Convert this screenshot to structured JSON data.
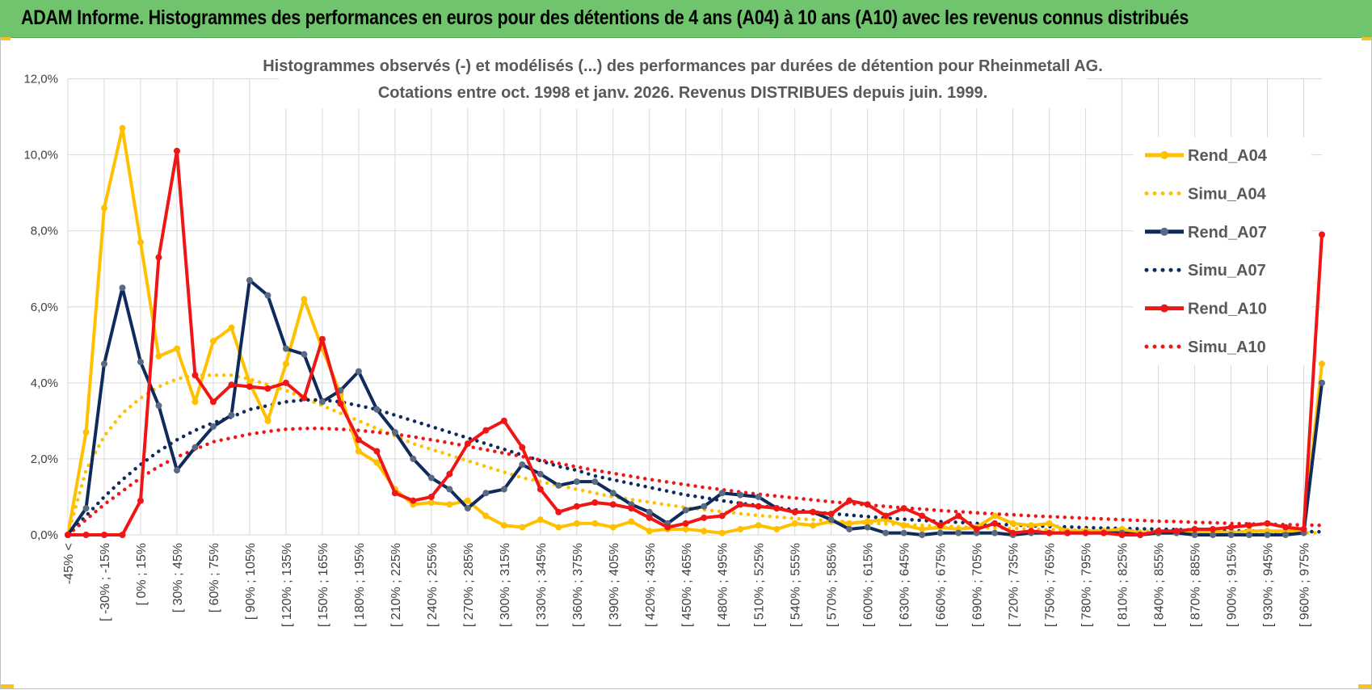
{
  "banner": {
    "title": "ADAM Informe. Histogrammes des performances en euros pour des détentions de 4 ans (A04) à 10 ans (A10) avec les revenus connus distribués"
  },
  "colors": {
    "banner_bg": "#6fc46d",
    "grid": "#d9d9d9",
    "axis_text": "#404040",
    "title_text": "#595959",
    "corner_accent": "#f5c31a"
  },
  "chart_data": {
    "type": "line",
    "title": "Histogrammes observés (-) et modélisés (...) des performances par durées de détention pour Rheinmetall AG.",
    "subtitle": "Cotations entre oct. 1998 et janv. 2026.  Revenus DISTRIBUES depuis juin. 1999.",
    "ylim": [
      0,
      12
    ],
    "yticks": [
      "0,0%",
      "2,0%",
      "4,0%",
      "6,0%",
      "8,0%",
      "10,0%",
      "12,0%"
    ],
    "grid": true,
    "legend_position": "right",
    "n_points": 70,
    "x_tick_labels": [
      "-45% <",
      "[ -30% ; -15%",
      "[ 0% ; 15%",
      "[ 30% ; 45%",
      "[ 60% ; 75%",
      "[ 90% ; 105%",
      "[ 120% ; 135%",
      "[ 150% ; 165%",
      "[ 180% ; 195%",
      "[ 210% ; 225%",
      "[ 240% ; 255%",
      "[ 270% ; 285%",
      "[ 300% ; 315%",
      "[ 330% ; 345%",
      "[ 360% ; 375%",
      "[ 390% ; 405%",
      "[ 420% ; 435%",
      "[ 450% ; 465%",
      "[ 480% ; 495%",
      "[ 510% ; 525%",
      "[ 540% ; 555%",
      "[ 570% ; 585%",
      "[ 600% ; 615%",
      "[ 630% ; 645%",
      "[ 660% ; 675%",
      "[ 690% ; 705%",
      "[ 720% ; 735%",
      "[ 750% ; 765%",
      "[ 780% ; 795%",
      "[ 810% ; 825%",
      "[ 840% ; 855%",
      "[ 870% ; 885%",
      "[ 900% ; 915%",
      "[ 930% ; 945%",
      "[ 960% ; 975%"
    ],
    "series": [
      {
        "name": "Rend_A04",
        "style": "solid",
        "color": "#ffc000",
        "values": [
          0.0,
          2.7,
          8.6,
          10.7,
          7.7,
          4.7,
          4.9,
          3.5,
          5.1,
          5.45,
          4.0,
          3.0,
          4.5,
          6.2,
          4.9,
          3.7,
          2.2,
          1.9,
          1.2,
          0.8,
          0.85,
          0.8,
          0.9,
          0.5,
          0.25,
          0.2,
          0.4,
          0.2,
          0.3,
          0.3,
          0.2,
          0.35,
          0.1,
          0.15,
          0.15,
          0.1,
          0.05,
          0.15,
          0.25,
          0.15,
          0.3,
          0.25,
          0.35,
          0.3,
          0.35,
          0.4,
          0.25,
          0.15,
          0.2,
          0.15,
          0.2,
          0.5,
          0.3,
          0.25,
          0.3,
          0.1,
          0.1,
          0.1,
          0.15,
          0.05,
          0.05,
          0.05,
          0.05,
          0.1,
          0.05,
          0.1,
          0.1,
          0.1,
          0.1,
          4.5
        ]
      },
      {
        "name": "Simu_A04",
        "style": "dotted",
        "color": "#ffc000",
        "values": [
          0.0,
          1.7,
          2.6,
          3.2,
          3.6,
          3.9,
          4.1,
          4.2,
          4.2,
          4.2,
          4.1,
          3.95,
          3.8,
          3.6,
          3.4,
          3.2,
          3.0,
          2.8,
          2.6,
          2.4,
          2.25,
          2.1,
          1.95,
          1.8,
          1.65,
          1.5,
          1.4,
          1.3,
          1.2,
          1.1,
          1.0,
          0.93,
          0.86,
          0.79,
          0.72,
          0.66,
          0.61,
          0.56,
          0.51,
          0.47,
          0.43,
          0.4,
          0.37,
          0.34,
          0.31,
          0.29,
          0.27,
          0.25,
          0.23,
          0.21,
          0.19,
          0.18,
          0.17,
          0.15,
          0.14,
          0.13,
          0.12,
          0.11,
          0.1,
          0.1,
          0.09,
          0.09,
          0.08,
          0.08,
          0.07,
          0.07,
          0.06,
          0.06,
          0.06,
          0.05
        ]
      },
      {
        "name": "Rend_A07",
        "style": "solid",
        "color": "#0f2a5c",
        "values": [
          0.0,
          0.7,
          4.5,
          6.5,
          4.55,
          3.4,
          1.7,
          2.3,
          2.85,
          3.15,
          6.7,
          6.3,
          4.9,
          4.75,
          3.5,
          3.8,
          4.3,
          3.3,
          2.7,
          2.0,
          1.5,
          1.2,
          0.7,
          1.1,
          1.2,
          1.85,
          1.6,
          1.3,
          1.4,
          1.4,
          1.1,
          0.8,
          0.6,
          0.3,
          0.65,
          0.75,
          1.1,
          1.05,
          1.0,
          0.7,
          0.6,
          0.6,
          0.4,
          0.15,
          0.2,
          0.05,
          0.05,
          0.0,
          0.05,
          0.05,
          0.05,
          0.05,
          0.0,
          0.05,
          0.05,
          0.05,
          0.05,
          0.05,
          0.05,
          0.0,
          0.05,
          0.05,
          0.0,
          0.0,
          0.0,
          0.0,
          0.0,
          0.0,
          0.05,
          4.0
        ]
      },
      {
        "name": "Simu_A07",
        "style": "dotted",
        "color": "#0f2a5c",
        "values": [
          0.0,
          0.5,
          1.0,
          1.45,
          1.85,
          2.2,
          2.5,
          2.75,
          2.95,
          3.1,
          3.3,
          3.4,
          3.5,
          3.55,
          3.55,
          3.5,
          3.4,
          3.3,
          3.15,
          3.0,
          2.85,
          2.7,
          2.55,
          2.4,
          2.25,
          2.1,
          1.95,
          1.8,
          1.7,
          1.55,
          1.45,
          1.35,
          1.25,
          1.15,
          1.05,
          0.98,
          0.9,
          0.83,
          0.77,
          0.71,
          0.66,
          0.6,
          0.56,
          0.52,
          0.48,
          0.44,
          0.41,
          0.38,
          0.35,
          0.33,
          0.3,
          0.28,
          0.26,
          0.24,
          0.22,
          0.21,
          0.19,
          0.18,
          0.17,
          0.16,
          0.15,
          0.14,
          0.13,
          0.12,
          0.11,
          0.1,
          0.1,
          0.09,
          0.09,
          0.08
        ]
      },
      {
        "name": "Rend_A10",
        "style": "solid",
        "color": "#f01616",
        "values": [
          0.0,
          0.0,
          0.0,
          0.0,
          0.9,
          7.3,
          10.1,
          4.2,
          3.5,
          3.95,
          3.9,
          3.85,
          4.0,
          3.6,
          5.15,
          3.45,
          2.5,
          2.2,
          1.1,
          0.9,
          1.0,
          1.6,
          2.4,
          2.75,
          3.0,
          2.3,
          1.2,
          0.6,
          0.75,
          0.85,
          0.8,
          0.7,
          0.45,
          0.2,
          0.3,
          0.45,
          0.5,
          0.8,
          0.75,
          0.7,
          0.6,
          0.6,
          0.55,
          0.9,
          0.8,
          0.5,
          0.7,
          0.5,
          0.25,
          0.5,
          0.15,
          0.3,
          0.05,
          0.1,
          0.05,
          0.05,
          0.05,
          0.05,
          0.0,
          0.0,
          0.1,
          0.1,
          0.15,
          0.15,
          0.2,
          0.25,
          0.3,
          0.2,
          0.15,
          7.9
        ]
      },
      {
        "name": "Simu_A10",
        "style": "dotted",
        "color": "#f01616",
        "values": [
          0.0,
          0.4,
          0.8,
          1.15,
          1.5,
          1.8,
          2.05,
          2.25,
          2.45,
          2.55,
          2.65,
          2.72,
          2.78,
          2.8,
          2.8,
          2.78,
          2.75,
          2.7,
          2.65,
          2.58,
          2.5,
          2.42,
          2.33,
          2.24,
          2.15,
          2.06,
          1.97,
          1.88,
          1.79,
          1.7,
          1.62,
          1.54,
          1.46,
          1.39,
          1.32,
          1.25,
          1.19,
          1.13,
          1.07,
          1.02,
          0.97,
          0.92,
          0.87,
          0.83,
          0.79,
          0.75,
          0.71,
          0.68,
          0.64,
          0.61,
          0.58,
          0.55,
          0.53,
          0.5,
          0.48,
          0.46,
          0.44,
          0.42,
          0.4,
          0.38,
          0.36,
          0.35,
          0.33,
          0.32,
          0.3,
          0.29,
          0.28,
          0.27,
          0.26,
          0.25
        ]
      }
    ]
  }
}
